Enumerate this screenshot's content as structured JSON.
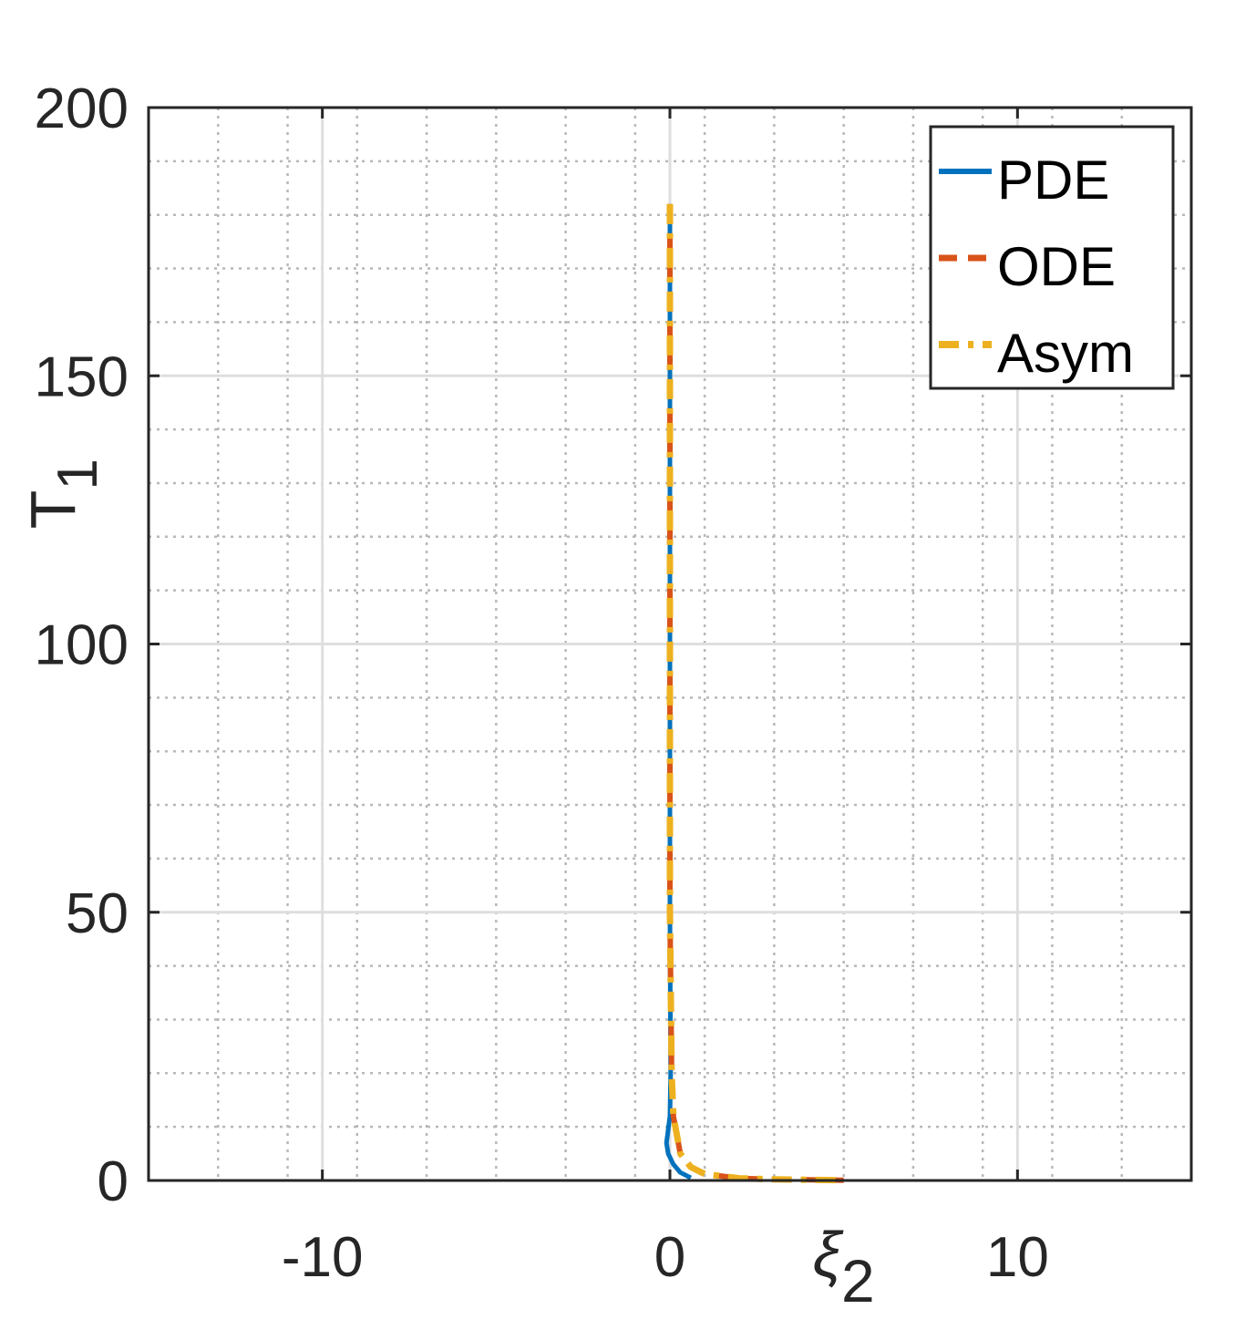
{
  "chart_data": {
    "type": "line",
    "title": "",
    "xlabel": {
      "base": "ξ",
      "sub": "2"
    },
    "ylabel": {
      "base": "T",
      "sub": "1"
    },
    "xlim": [
      -15,
      15
    ],
    "ylim": [
      0,
      200
    ],
    "xticks": [
      -10,
      0,
      10
    ],
    "xtick_labels": [
      "-10",
      "0",
      "10"
    ],
    "yticks": [
      0,
      50,
      100,
      150,
      200
    ],
    "ytick_labels": [
      "0",
      "50",
      "100",
      "150",
      "200"
    ],
    "x_minor_step": 2,
    "y_minor_step": 10,
    "grid": true,
    "minor_grid": true,
    "legend_position": "top-right",
    "series": [
      {
        "name": "PDE",
        "color": "#0072BD",
        "style": "solid",
        "x": [
          0.0,
          0.0,
          0.0,
          0.0,
          0.02,
          0.0,
          -0.1,
          -0.05,
          0.1,
          0.3,
          0.6
        ],
        "y": [
          182,
          150,
          100,
          50,
          20,
          12,
          7,
          5,
          3,
          1.5,
          0.5
        ]
      },
      {
        "name": "ODE",
        "color": "#D95319",
        "style": "dashed",
        "x": [
          0.0,
          0.0,
          0.0,
          0.0,
          0.05,
          0.1,
          0.3,
          0.6,
          1.0,
          2.0,
          3.0,
          5.0
        ],
        "y": [
          182,
          150,
          100,
          50,
          20,
          12,
          5,
          2.5,
          1.2,
          0.4,
          0.2,
          0.05
        ]
      },
      {
        "name": "Asym",
        "color": "#EDB120",
        "style": "dashdot",
        "x": [
          0.0,
          0.0,
          0.0,
          0.0,
          0.05,
          0.1,
          0.3,
          0.6,
          1.0,
          2.0,
          3.0,
          5.0
        ],
        "y": [
          182,
          150,
          100,
          50,
          20,
          12,
          5,
          2.5,
          1.2,
          0.4,
          0.2,
          0.05
        ]
      }
    ]
  }
}
